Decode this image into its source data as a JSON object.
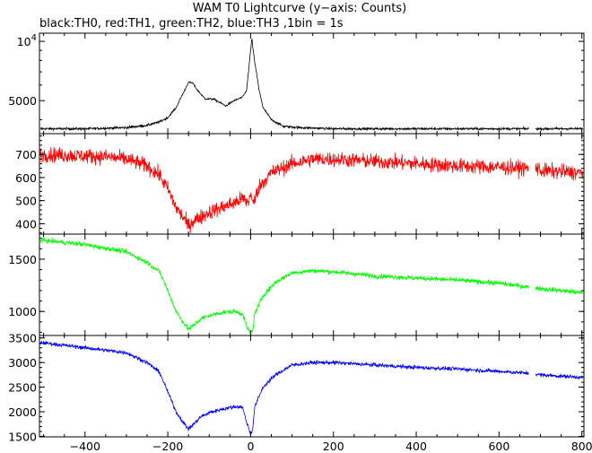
{
  "header": {
    "title": "WAM T0 Lightcurve (y−axis: Counts)",
    "subtitle": "black:TH0, red:TH1, green:TH2, blue:TH3 ,1bin = 1s"
  },
  "chart_data": [
    {
      "type": "line",
      "series": [
        {
          "color": "#000000",
          "x": [
            -500,
            -400,
            -300,
            -250,
            -220,
            -200,
            -180,
            -160,
            -150,
            -140,
            -130,
            -110,
            -90,
            -60,
            -40,
            -20,
            -10,
            -5,
            0,
            3,
            5,
            10,
            20,
            30,
            50,
            80,
            120,
            200,
            400,
            600,
            800
          ],
          "y": [
            3600,
            3600,
            3650,
            3750,
            3900,
            4100,
            4600,
            5600,
            6200,
            6150,
            5700,
            5100,
            5100,
            4700,
            5000,
            5200,
            5600,
            7000,
            9000,
            10400,
            9400,
            7800,
            5700,
            4600,
            4000,
            3700,
            3650,
            3600,
            3600,
            3600,
            3600
          ],
          "noise": 50
        }
      ],
      "xlim": [
        -510,
        805
      ],
      "ylim": [
        3400,
        11000
      ],
      "yticks": [
        {
          "value": 5000,
          "label": "5000"
        },
        {
          "value": 10000,
          "label": "10",
          "sup": "4"
        }
      ],
      "log_y": true
    },
    {
      "type": "line",
      "series": [
        {
          "color": "#ff0000",
          "x": [
            -500,
            -350,
            -300,
            -250,
            -220,
            -200,
            -180,
            -160,
            -150,
            -140,
            -120,
            -100,
            -70,
            -40,
            -20,
            -5,
            0,
            5,
            20,
            50,
            100,
            150,
            200,
            300,
            400,
            500,
            600,
            670,
            680,
            690,
            700,
            800
          ],
          "y": [
            700,
            690,
            680,
            650,
            610,
            550,
            470,
            420,
            390,
            410,
            430,
            450,
            470,
            490,
            510,
            490,
            540,
            480,
            560,
            620,
            660,
            680,
            680,
            670,
            660,
            650,
            645,
            640,
            580,
            645,
            630,
            620
          ],
          "noise": 32
        }
      ],
      "xlim": [
        -510,
        805
      ],
      "ylim": [
        355,
        790
      ],
      "yticks": [
        {
          "value": 400,
          "label": "400"
        },
        {
          "value": 500,
          "label": "500"
        },
        {
          "value": 600,
          "label": "600"
        },
        {
          "value": 700,
          "label": "700"
        }
      ]
    },
    {
      "type": "line",
      "series": [
        {
          "color": "#00ff00",
          "x": [
            -500,
            -400,
            -300,
            -250,
            -220,
            -200,
            -180,
            -160,
            -150,
            -140,
            -120,
            -100,
            -70,
            -40,
            -20,
            -10,
            0,
            5,
            10,
            30,
            60,
            100,
            150,
            200,
            300,
            400,
            500,
            600,
            680,
            700,
            800
          ],
          "y": [
            1680,
            1640,
            1570,
            1470,
            1380,
            1200,
            1000,
            880,
            830,
            860,
            930,
            960,
            990,
            1000,
            980,
            860,
            790,
            820,
            980,
            1150,
            1280,
            1370,
            1390,
            1380,
            1340,
            1320,
            1300,
            1270,
            1230,
            1220,
            1180
          ],
          "noise": 22
        }
      ],
      "xlim": [
        -510,
        805
      ],
      "ylim": [
        770,
        1740
      ],
      "yticks": [
        {
          "value": 1000,
          "label": "1000"
        },
        {
          "value": 1500,
          "label": "1500"
        }
      ]
    },
    {
      "type": "line",
      "series": [
        {
          "color": "#0000ff",
          "x": [
            -500,
            -400,
            -300,
            -250,
            -220,
            -200,
            -180,
            -160,
            -150,
            -140,
            -120,
            -100,
            -70,
            -40,
            -20,
            -10,
            0,
            5,
            10,
            30,
            60,
            100,
            150,
            200,
            300,
            400,
            500,
            600,
            680,
            700,
            800
          ],
          "y": [
            3400,
            3300,
            3200,
            3000,
            2800,
            2400,
            2000,
            1750,
            1650,
            1730,
            1900,
            1980,
            2050,
            2100,
            2100,
            1800,
            1550,
            1650,
            2100,
            2500,
            2750,
            2950,
            3000,
            3000,
            2950,
            2900,
            2870,
            2820,
            2780,
            2750,
            2700
          ],
          "noise": 38
        }
      ],
      "xlim": [
        -510,
        805
      ],
      "ylim": [
        1490,
        3550
      ],
      "yticks": [
        {
          "value": 1500,
          "label": "1500"
        },
        {
          "value": 2000,
          "label": "2000"
        },
        {
          "value": 2500,
          "label": "2500"
        },
        {
          "value": 3000,
          "label": "3000"
        },
        {
          "value": 3500,
          "label": "3500"
        }
      ],
      "xticks": [
        {
          "value": -400,
          "label": "−400"
        },
        {
          "value": -200,
          "label": "−200"
        },
        {
          "value": 0,
          "label": "0"
        },
        {
          "value": 200,
          "label": "200"
        },
        {
          "value": 400,
          "label": "400"
        },
        {
          "value": 600,
          "label": "600"
        },
        {
          "value": 800,
          "label": "800"
        }
      ]
    }
  ]
}
